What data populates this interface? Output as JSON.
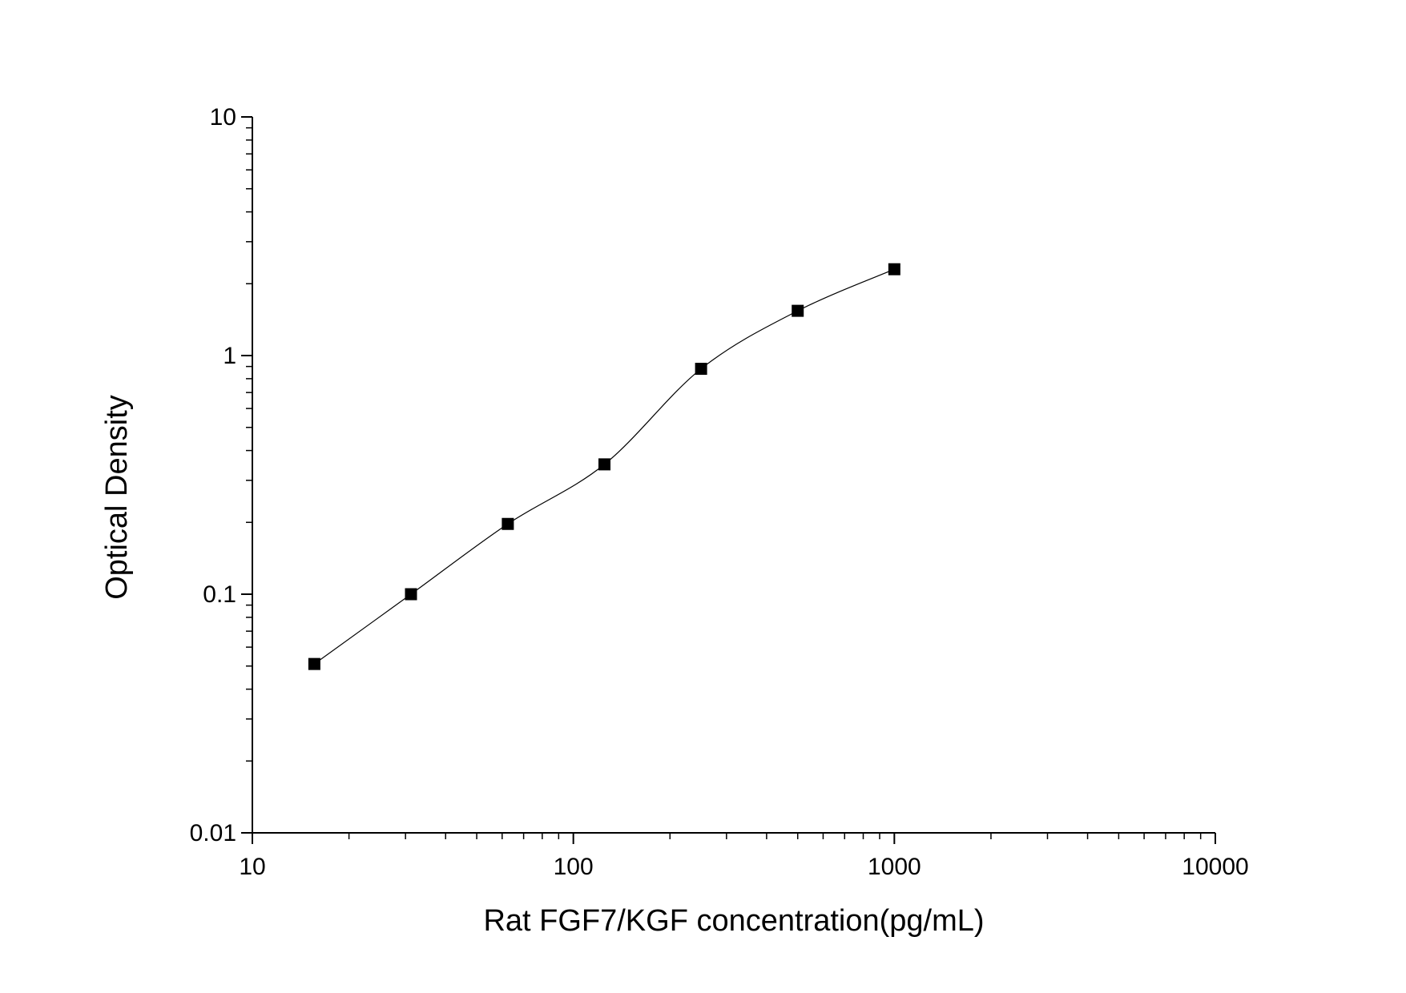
{
  "chart_data": {
    "type": "scatter",
    "xlabel": "Rat FGF7/KGF concentration(pg/mL)",
    "ylabel": "Optical Density",
    "x_scale": "log",
    "y_scale": "log",
    "xlim": [
      10,
      10000
    ],
    "ylim": [
      0.01,
      10
    ],
    "x_ticks": [
      "10",
      "100",
      "1000",
      "10000"
    ],
    "y_ticks": [
      "0.01",
      "0.1",
      "1",
      "10"
    ],
    "grid": false,
    "legend": "none",
    "marker": "square",
    "marker_color": "#000000",
    "series": [
      {
        "points": [
          {
            "x": 15.6,
            "y": 0.051
          },
          {
            "x": 31.2,
            "y": 0.1
          },
          {
            "x": 62.5,
            "y": 0.197
          },
          {
            "x": 125,
            "y": 0.35
          },
          {
            "x": 250,
            "y": 0.88
          },
          {
            "x": 500,
            "y": 1.54
          },
          {
            "x": 1000,
            "y": 2.3
          }
        ]
      }
    ],
    "fit_curve": {
      "type": "smooth",
      "x_range": [
        15.6,
        1000
      ]
    }
  }
}
